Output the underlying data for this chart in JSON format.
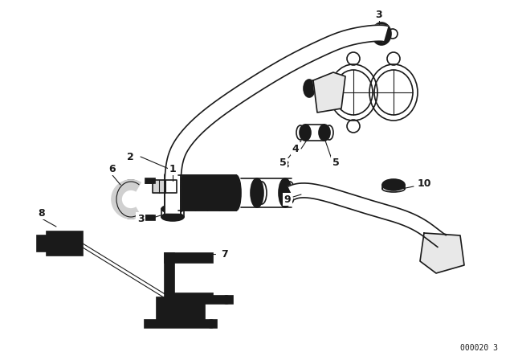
{
  "background_color": "#ffffff",
  "diagram_id": "000020 3",
  "line_color": "#1a1a1a",
  "fig_width": 6.4,
  "fig_height": 4.48
}
